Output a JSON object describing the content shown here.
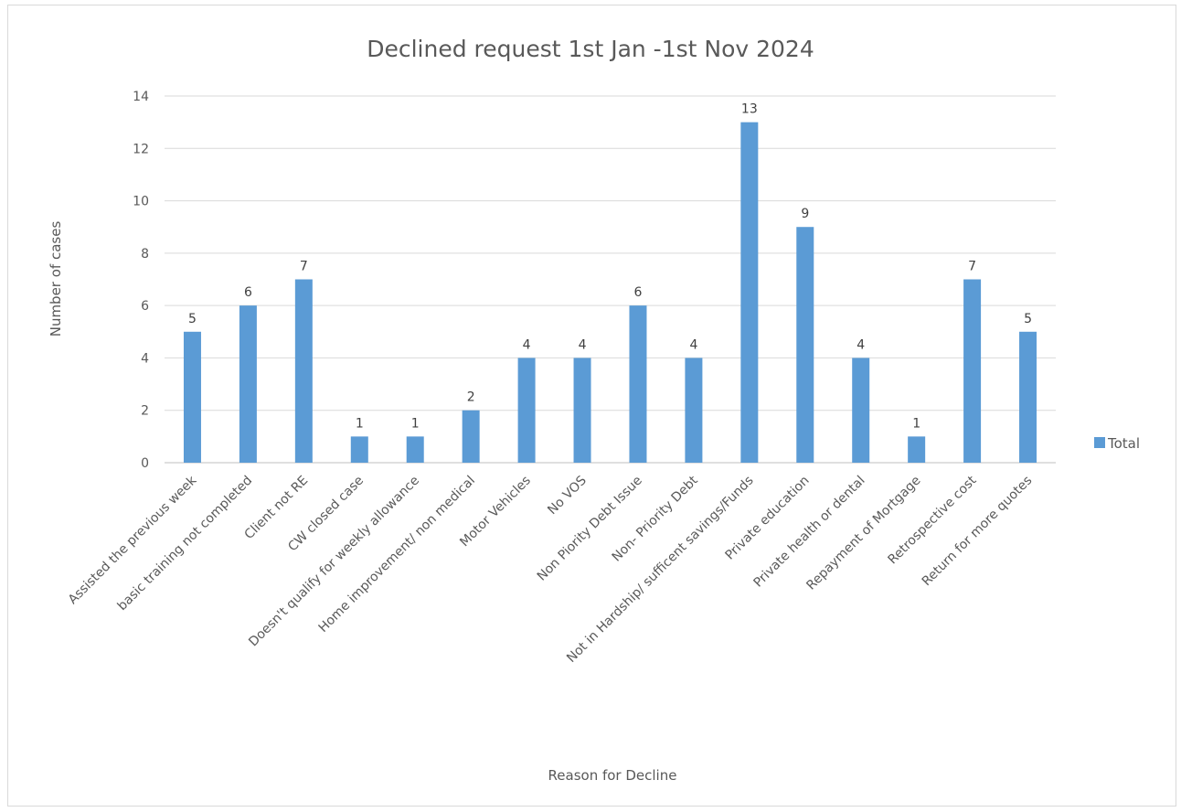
{
  "chart_data": {
    "type": "bar",
    "title": "Declined request 1st Jan -1st Nov 2024",
    "xlabel": "Reason for Decline",
    "ylabel": "Number  of cases",
    "ylim": [
      0,
      14
    ],
    "yticks": [
      0,
      2,
      4,
      6,
      8,
      10,
      12,
      14
    ],
    "grid": true,
    "legend_position": "right",
    "bar_color": "#5B9BD5",
    "categories": [
      "Assisted the previous week",
      "basic training not completed",
      "Client not RE",
      "CW closed case",
      "Doesn't qualify for weekly allowance",
      "Home improvement/ non medical",
      "Motor Vehicles",
      "No VOS",
      "Non Piority Debt Issue",
      "Non- Priority Debt",
      "Not in Hardship/ sufficent savings/Funds",
      "Private education",
      "Private health or dental",
      "Repayment of Mortgage",
      "Retrospective cost",
      "Return for more quotes"
    ],
    "series": [
      {
        "name": "Total",
        "values": [
          5,
          6,
          7,
          1,
          1,
          2,
          4,
          4,
          6,
          4,
          13,
          9,
          4,
          1,
          7,
          5
        ]
      }
    ]
  }
}
